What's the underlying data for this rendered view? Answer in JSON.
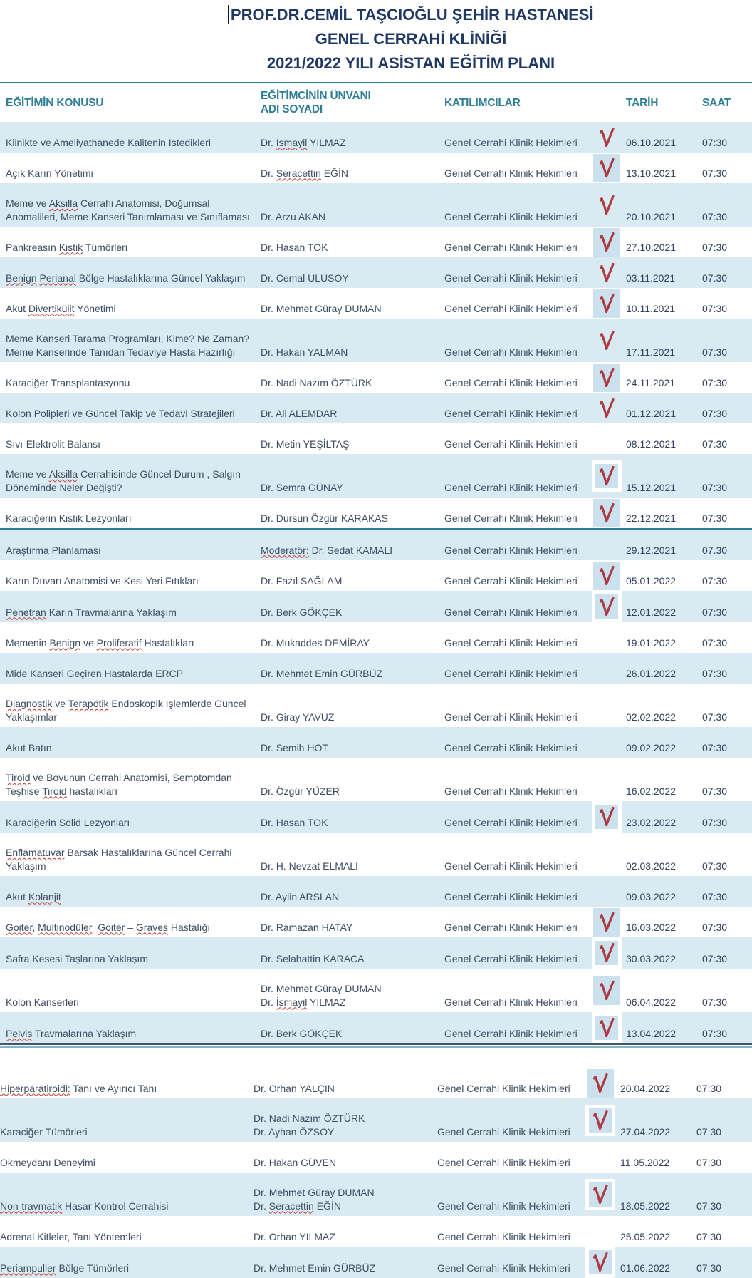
{
  "title": {
    "line1": "PROF.DR.CEMİL TAŞCIOĞLU ŞEHİR HASTANESİ",
    "line2": "GENEL CERRAHİ KLİNİĞİ",
    "line3": "2021/2022 YILI ASİSTAN EĞİTİM PLANI"
  },
  "columns": {
    "topic": "EĞİTİMİN KONUSU",
    "educator": "EĞİTİMCİNİN ÜNVANI\nADI SOYADI",
    "participants": "KATILIMCILAR",
    "date": "TARİH",
    "time": "SAAT"
  },
  "colors": {
    "header_teal": "#2E7F96",
    "title_navy": "#1F3864",
    "row_blue": "#D9EAF2",
    "check_red": "#AC3B43",
    "squiggle_red": "#C0392B"
  },
  "icons": {
    "checkmark": "red-check-icon",
    "text_cursor": "text-cursor"
  },
  "rows": [
    {
      "section": 1,
      "bg": "blue",
      "check": "plain",
      "topic": "Klinikte ve Ameliyathanede Kalitenin İstedikleri",
      "educator": "Dr. İsmayil YILMAZ",
      "participants": "Genel Cerrahi Klinik Hekimleri",
      "date": "06.10.2021",
      "time": "07:30",
      "misspelled": [
        "İsmayil"
      ]
    },
    {
      "section": 1,
      "bg": "white",
      "check": "bluebox",
      "topic": "Açık Karın Yönetimi",
      "educator": "Dr. Seracettin EĞİN",
      "participants": "Genel Cerrahi Klinik Hekimleri",
      "date": "13.10.2021",
      "time": "07:30",
      "misspelled": [
        "Seracettin"
      ]
    },
    {
      "section": 1,
      "bg": "blue",
      "check": "plain",
      "topic": "Meme ve Aksilla Cerrahi Anatomisi, Doğumsal\nAnomalileri, Meme Kanseri Tanımlaması ve Sınıflaması",
      "educator": "Dr. Arzu AKAN",
      "participants": "Genel Cerrahi Klinik Hekimleri",
      "date": "20.10.2021",
      "time": "07:30",
      "misspelled": [
        "Aksilla"
      ]
    },
    {
      "section": 1,
      "bg": "white",
      "check": "bluebox",
      "topic": "Pankreasın Kistik Tümörleri",
      "educator": "Dr. Hasan TOK",
      "participants": "Genel Cerrahi Klinik Hekimleri",
      "date": "27.10.2021",
      "time": "07:30",
      "misspelled": [
        "Kistik"
      ]
    },
    {
      "section": 1,
      "bg": "blue",
      "check": "plain",
      "topic": "Benign Perianal Bölge Hastalıklarına Güncel Yaklaşım",
      "educator": "Dr. Cemal ULUSOY",
      "participants": "Genel Cerrahi Klinik Hekimleri",
      "date": "03.11.2021",
      "time": "07:30",
      "misspelled": [
        "Benign",
        "Perianal"
      ]
    },
    {
      "section": 1,
      "bg": "white",
      "check": "bluebox",
      "topic": "Akut Divertikülit Yönetimi",
      "educator": "Dr. Mehmet Güray DUMAN",
      "participants": "Genel Cerrahi Klinik Hekimleri",
      "date": "10.11.2021",
      "time": "07:30",
      "misspelled": [
        "Divertikülit"
      ]
    },
    {
      "section": 1,
      "bg": "blue",
      "check": "plain",
      "topic": "Meme Kanseri Tarama Programları, Kime? Ne Zaman?\nMeme Kanserinde Tanıdan Tedaviye Hasta Hazırlığı",
      "educator": "Dr. Hakan YALMAN",
      "participants": "Genel Cerrahi Klinik Hekimleri",
      "date": "17.11.2021",
      "time": "07:30",
      "misspelled": []
    },
    {
      "section": 1,
      "bg": "white",
      "check": "bluebox",
      "topic": "Karaciğer Transplantasyonu",
      "educator": "Dr. Nadi Nazım ÖZTÜRK",
      "participants": "Genel Cerrahi Klinik Hekimleri",
      "date": "24.11.2021",
      "time": "07:30",
      "misspelled": []
    },
    {
      "section": 1,
      "bg": "blue",
      "check": "plain",
      "topic": "Kolon Polipleri ve Güncel Takip ve Tedavi Stratejileri",
      "educator": "Dr. Ali ALEMDAR",
      "participants": "Genel Cerrahi Klinik Hekimleri",
      "date": "01.12.2021",
      "time": "07:30",
      "misspelled": []
    },
    {
      "section": 1,
      "bg": "white",
      "check": "none",
      "topic": "Sıvı-Elektrolit Balansı",
      "educator": "Dr. Metin YEŞİLTAŞ",
      "participants": "Genel Cerrahi Klinik Hekimleri",
      "date": "08.12.2021",
      "time": "07:30",
      "misspelled": []
    },
    {
      "section": 1,
      "bg": "blue",
      "check": "whitebox",
      "topic": "Meme ve Aksilla Cerrahisinde Güncel Durum , Salgın\nDöneminde Neler Değişti?",
      "educator": "Dr. Semra GÜNAY",
      "participants": "Genel Cerrahi Klinik Hekimleri",
      "date": "15.12.2021",
      "time": "07:30",
      "misspelled": [
        "Aksilla"
      ]
    },
    {
      "section": 1,
      "bg": "white",
      "check": "bluebox",
      "topic": "Karaciğerin Kistik Lezyonları",
      "educator": "Dr. Dursun Özgür KARAKAS",
      "participants": "Genel Cerrahi Klinik Hekimleri",
      "date": "22.12.2021",
      "time": "07:30",
      "misspelled": []
    },
    {
      "section": 2,
      "bg": "blue",
      "check": "none",
      "topic": "Araştırma Planlaması",
      "educator": "Moderatör: Dr. Sedat KAMALI",
      "participants": "Genel Cerrahi Klinik Hekimleri",
      "date": "29.12.2021",
      "time": "07.30",
      "misspelled": [
        "Moderatör:"
      ]
    },
    {
      "section": 2,
      "bg": "white",
      "check": "bluebox",
      "topic": "Karın Duvarı Anatomisi ve Kesi Yeri Fıtıkları",
      "educator": "Dr. Fazıl SAĞLAM",
      "participants": "Genel Cerrahi Klinik Hekimleri",
      "date": "05.01.2022",
      "time": "07:30",
      "misspelled": []
    },
    {
      "section": 2,
      "bg": "blue",
      "check": "whitebox",
      "topic": "Penetran Karın Travmalarına Yaklaşım",
      "educator": "Dr. Berk GÖKÇEK",
      "participants": "Genel Cerrahi Klinik Hekimleri",
      "date": "12.01.2022",
      "time": "07:30",
      "misspelled": [
        "Penetran"
      ]
    },
    {
      "section": 2,
      "bg": "white",
      "check": "none",
      "topic": "Memenin Benign ve Proliferatif Hastalıkları",
      "educator": "Dr. Mukaddes DEMİRAY",
      "participants": "Genel Cerrahi Klinik Hekimleri",
      "date": "19.01.2022",
      "time": "07:30",
      "misspelled": [
        "Benign",
        "Proliferatif"
      ]
    },
    {
      "section": 2,
      "bg": "blue",
      "check": "none",
      "topic": "Mide Kanseri Geçiren Hastalarda ERCP",
      "educator": "Dr. Mehmet Emin GÜRBÜZ",
      "participants": "Genel Cerrahi Klinik Hekimleri",
      "date": "26.01.2022",
      "time": "07:30",
      "misspelled": []
    },
    {
      "section": 2,
      "bg": "white",
      "check": "none",
      "topic": "Diagnostik ve Terapötik Endoskopik İşlemlerde Güncel\nYaklaşımlar",
      "educator": "Dr. Giray YAVUZ",
      "participants": "Genel Cerrahi Klinik Hekimleri",
      "date": "02.02.2022",
      "time": "07:30",
      "misspelled": [
        "Diagnostik",
        "Terapötik"
      ]
    },
    {
      "section": 2,
      "bg": "blue",
      "check": "none",
      "topic": "Akut Batın",
      "educator": "Dr. Semih HOT",
      "participants": "Genel Cerrahi Klinik Hekimleri",
      "date": "09.02.2022",
      "time": "07:30",
      "misspelled": []
    },
    {
      "section": 2,
      "bg": "white",
      "check": "none",
      "topic": "Tiroid ve Boyunun Cerrahi Anatomisi, Semptomdan\nTeşhise Tiroid hastalıkları",
      "educator": "Dr. Özgür YÜZER",
      "participants": "Genel Cerrahi Klinik Hekimleri",
      "date": "16.02.2022",
      "time": "07:30",
      "misspelled": [
        "Tiroid"
      ]
    },
    {
      "section": 2,
      "bg": "blue",
      "check": "whitebox",
      "topic": "Karaciğerin Solid Lezyonları",
      "educator": "Dr. Hasan TOK",
      "participants": "Genel Cerrahi Klinik Hekimleri",
      "date": "23.02.2022",
      "time": "07:30",
      "misspelled": []
    },
    {
      "section": 2,
      "bg": "white",
      "check": "none",
      "topic": "Enflamatuvar Barsak Hastalıklarına Güncel Cerrahi\nYaklaşım",
      "educator": "Dr. H. Nevzat ELMALI",
      "participants": "Genel Cerrahi Klinik Hekimleri",
      "date": "02.03.2022",
      "time": "07:30",
      "misspelled": [
        "Enflamatuvar"
      ]
    },
    {
      "section": 2,
      "bg": "blue",
      "check": "none",
      "topic": "Akut Kolanjit",
      "educator": "Dr. Aylin ARSLAN",
      "participants": "Genel Cerrahi Klinik Hekimleri",
      "date": "09.03.2022",
      "time": "07:30",
      "misspelled": [
        "Kolanjit"
      ]
    },
    {
      "section": 2,
      "bg": "white",
      "check": "bluebox",
      "topic": "Goiter, Multinodüler  Goiter – Graves Hastalığı",
      "educator": "Dr. Ramazan HATAY",
      "participants": "Genel Cerrahi Klinik Hekimleri",
      "date": "16.03.2022",
      "time": "07:30",
      "misspelled": [
        "Goiter",
        "Multinodüler",
        "Graves"
      ]
    },
    {
      "section": 2,
      "bg": "blue",
      "check": "whitebox",
      "topic": "Safra Kesesi Taşlarına Yaklaşım",
      "educator": "Dr. Selahattin KARACA",
      "participants": "Genel Cerrahi Klinik Hekimleri",
      "date": "30.03.2022",
      "time": "07:30",
      "misspelled": []
    },
    {
      "section": 2,
      "bg": "white",
      "check": "bluebox",
      "topic": "Kolon Kanserleri",
      "educator": "Dr. Mehmet Güray DUMAN\nDr. İsmayil YILMAZ",
      "participants": "Genel Cerrahi Klinik Hekimleri",
      "date": "06.04.2022",
      "time": "07:30",
      "misspelled": [
        "İsmayil"
      ]
    },
    {
      "section": 2,
      "bg": "blue",
      "check": "whitebox",
      "topic": "Pelvis Travmalarına Yaklaşım",
      "educator": "Dr. Berk GÖKÇEK",
      "participants": "Genel Cerrahi Klinik Hekimleri",
      "date": "13.04.2022",
      "time": "07:30",
      "misspelled": [
        "Pelvis"
      ]
    },
    {
      "section": 3,
      "bg": "white",
      "check": "bluebox",
      "topic": "Hiperparatiroidi: Tanı ve Ayırıcı Tanı",
      "educator": "Dr. Orhan YALÇIN",
      "participants": "Genel Cerrahi Klinik Hekimleri",
      "date": "20.04.2022",
      "time": "07:30",
      "misspelled": [
        "Hiperparatiroidi:"
      ]
    },
    {
      "section": 3,
      "bg": "blue",
      "check": "whitebox",
      "topic": "Karaciğer Tümörleri",
      "educator": "Dr. Nadi Nazım ÖZTÜRK\nDr. Ayhan ÖZSOY",
      "participants": "Genel Cerrahi Klinik Hekimleri",
      "date": "27.04.2022",
      "time": "07:30",
      "misspelled": []
    },
    {
      "section": 3,
      "bg": "white",
      "check": "none",
      "topic": "Okmeydanı Deneyimi",
      "educator": "Dr. Hakan GÜVEN",
      "participants": "Genel Cerrahi Klinik Hekimleri",
      "date": "11.05.2022",
      "time": "07:30",
      "misspelled": []
    },
    {
      "section": 3,
      "bg": "blue",
      "check": "whitebox",
      "topic": "Non-travmatik Hasar Kontrol Cerrahisi",
      "educator": "Dr. Mehmet Güray DUMAN\nDr. Seracettin EĞİN",
      "participants": "Genel Cerrahi Klinik Hekimleri",
      "date": "18.05.2022",
      "time": "07:30",
      "misspelled": [
        "Non-travmatik",
        "Seracettin"
      ]
    },
    {
      "section": 3,
      "bg": "white",
      "check": "none",
      "topic": "Adrenal Kitleler, Tanı Yöntemleri",
      "educator": "Dr. Orhan YILMAZ",
      "participants": "Genel Cerrahi Klinik Hekimleri",
      "date": "25.05.2022",
      "time": "07:30",
      "misspelled": []
    },
    {
      "section": 3,
      "bg": "blue",
      "check": "whitebox",
      "topic": "Periampuller Bölge Tümörleri",
      "educator": "Dr. Mehmet Emin GÜRBÜZ",
      "participants": "Genel Cerrahi Klinik Hekimleri",
      "date": "01.06.2022",
      "time": "07:30",
      "misspelled": [
        "Periampuller"
      ]
    }
  ]
}
